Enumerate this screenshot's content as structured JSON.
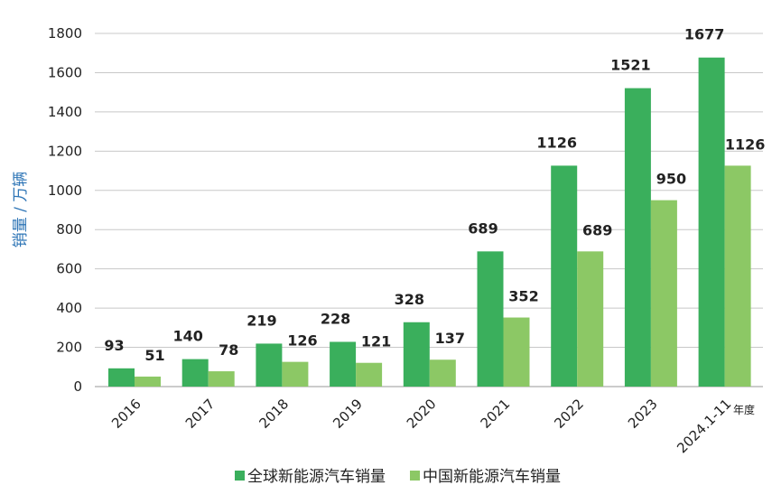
{
  "chart_data": {
    "type": "bar",
    "title": "",
    "xlabel": "年度",
    "ylabel": "销量 / 万辆",
    "ylim": [
      0,
      1800
    ],
    "yticks": [
      0,
      200,
      400,
      600,
      800,
      1000,
      1200,
      1400,
      1600,
      1800
    ],
    "grid": true,
    "legend_position": "bottom",
    "categories": [
      "2016",
      "2017",
      "2018",
      "2019",
      "2020",
      "2021",
      "2022",
      "2023",
      "2024.1-11"
    ],
    "series": [
      {
        "name": "全球新能源汽车销量",
        "color": "#3aaf5c",
        "values": [
          93,
          140,
          219,
          228,
          328,
          689,
          1126,
          1521,
          1677
        ]
      },
      {
        "name": "中国新能源汽车销量",
        "color": "#8cc865",
        "values": [
          51,
          78,
          126,
          121,
          137,
          352,
          689,
          950,
          1126
        ]
      }
    ],
    "ylabel_color": "#2e75b6"
  }
}
